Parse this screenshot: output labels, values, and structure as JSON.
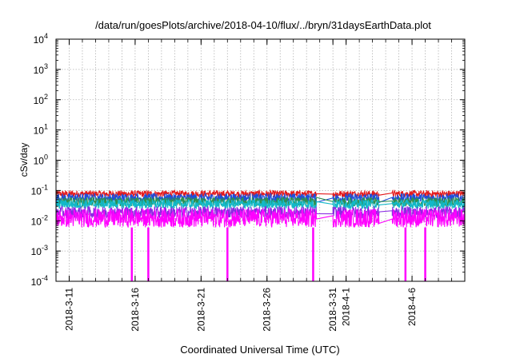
{
  "chart_data": {
    "type": "line",
    "title": "/data/run/goesPlots/archive/2018-04-10/flux/../bryn/31daysEarthData.plot",
    "xlabel": "Coordinated Universal Time (UTC)",
    "ylabel": "cSv/day",
    "y_scale": "log",
    "ylim": [
      0.0001,
      10000
    ],
    "y_ticks": [
      {
        "value": 0.0001,
        "base": "10",
        "exp": "-4"
      },
      {
        "value": 0.001,
        "base": "10",
        "exp": "-3"
      },
      {
        "value": 0.01,
        "base": "10",
        "exp": "-2"
      },
      {
        "value": 0.1,
        "base": "10",
        "exp": "-1"
      },
      {
        "value": 1,
        "base": "10",
        "exp": "0"
      },
      {
        "value": 10,
        "base": "10",
        "exp": "1"
      },
      {
        "value": 100,
        "base": "10",
        "exp": "2"
      },
      {
        "value": 1000,
        "base": "10",
        "exp": "3"
      },
      {
        "value": 10000,
        "base": "10",
        "exp": "4"
      }
    ],
    "x_ticks": [
      "2018-3-11",
      "2018-3-16",
      "2018-3-21",
      "2018-3-26",
      "2018-3-31",
      "2018-4-1",
      "2018-4-6"
    ],
    "xlim": [
      "2018-03-10T00:00",
      "2018-04-10T00:00"
    ],
    "grid": true,
    "legend": "none",
    "data_gaps": [
      [
        "2018-03-29T18:00",
        "2018-03-31T00:00"
      ],
      [
        "2018-04-03T12:00",
        "2018-04-04T12:00"
      ]
    ],
    "series": [
      {
        "color": "#e41a1c",
        "band": [
          0.06,
          0.1
        ]
      },
      {
        "color": "#1f4fd8",
        "band": [
          0.04,
          0.08
        ]
      },
      {
        "color": "#2f8f4f",
        "band": [
          0.03,
          0.06
        ]
      },
      {
        "color": "#12b8c8",
        "band": [
          0.025,
          0.05
        ]
      },
      {
        "color": "#8a2be2",
        "band": [
          0.012,
          0.03
        ]
      },
      {
        "color": "#ff00ff",
        "band": [
          0.006,
          0.025
        ]
      }
    ],
    "dropouts": [
      {
        "date": "2018-03-15T18:00",
        "value": 0.0001
      },
      {
        "date": "2018-03-17T00:00",
        "value": 0.0001
      },
      {
        "date": "2018-03-23T00:00",
        "value": 0.0001
      },
      {
        "date": "2018-03-29T12:00",
        "value": 0.0001
      },
      {
        "date": "2018-04-05T12:00",
        "value": 0.0001
      },
      {
        "date": "2018-04-07T00:00",
        "value": 0.0001
      }
    ]
  }
}
